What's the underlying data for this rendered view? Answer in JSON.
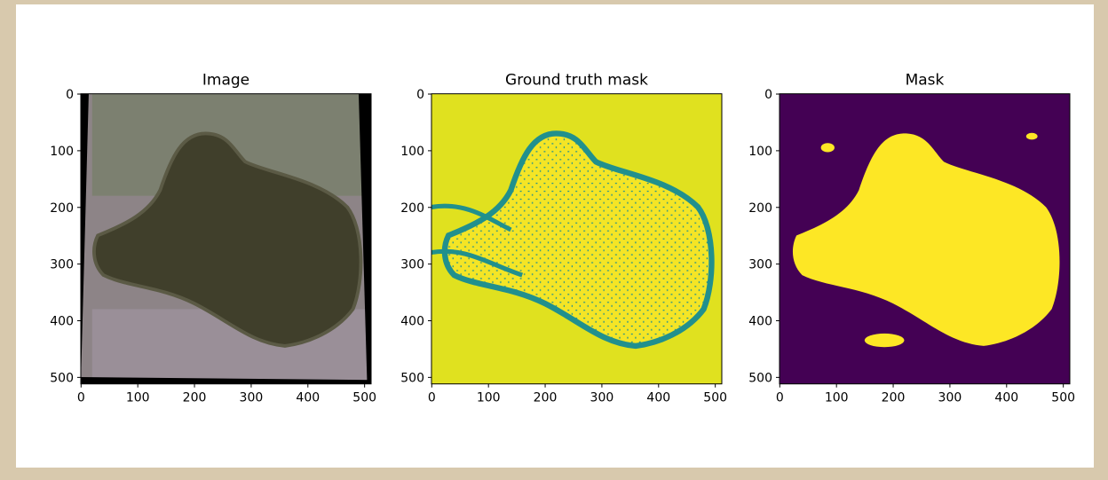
{
  "chart_data": [
    {
      "type": "image",
      "title": "Image",
      "xlim": [
        -0.5,
        511.5
      ],
      "ylim": [
        511.5,
        -0.5
      ],
      "xticks": [
        0,
        100,
        200,
        300,
        400,
        500
      ],
      "yticks": [
        0,
        100,
        200,
        300,
        400,
        500
      ]
    },
    {
      "type": "image",
      "title": "Ground truth mask",
      "xlim": [
        -0.5,
        511.5
      ],
      "ylim": [
        511.5,
        -0.5
      ],
      "xticks": [
        0,
        100,
        200,
        300,
        400,
        500
      ],
      "yticks": [
        0,
        100,
        200,
        300,
        400,
        500
      ]
    },
    {
      "type": "image",
      "title": "Mask",
      "xlim": [
        -0.5,
        511.5
      ],
      "ylim": [
        511.5,
        -0.5
      ],
      "xticks": [
        0,
        100,
        200,
        300,
        400,
        500
      ],
      "yticks": [
        0,
        100,
        200,
        300,
        400,
        500
      ]
    }
  ]
}
